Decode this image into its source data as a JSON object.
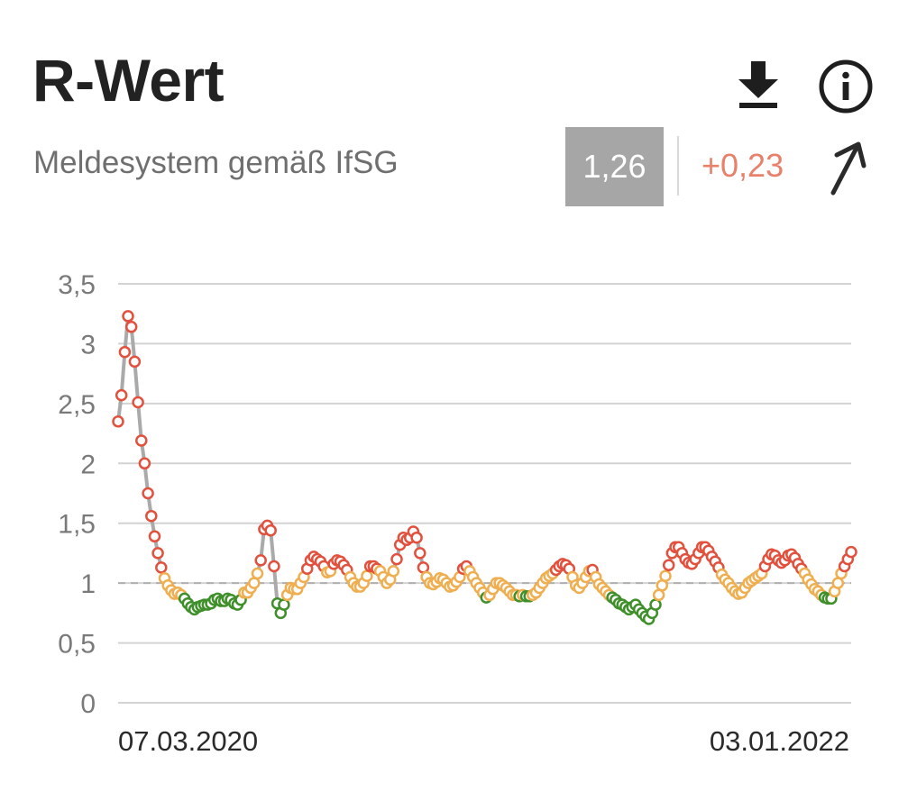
{
  "header": {
    "title": "R-Wert",
    "subtitle": "Meldesystem gemäß IfSG",
    "current_value": "1,26",
    "delta": "+0,23",
    "delta_color": "#e8806a",
    "badge_color": "#a6a6a6",
    "icons": [
      "download-icon",
      "info-icon",
      "trend-up-icon"
    ]
  },
  "chart_data": {
    "type": "line",
    "title": "",
    "xlabel": "",
    "ylabel": "",
    "x_start": "07.03.2020",
    "x_end": "03.01.2022",
    "x_tick_labels": [
      "07.03.2020",
      "03.01.2022"
    ],
    "ylim": [
      0,
      3.5
    ],
    "y_ticks": [
      0,
      0.5,
      1,
      1.5,
      2,
      2.5,
      3,
      3.5
    ],
    "y_tick_labels": [
      "0",
      "0,5",
      "1",
      "1,5",
      "2",
      "2,5",
      "3",
      "3,5"
    ],
    "reference_line": 1,
    "grid": true,
    "line_color": "#aaaaaa",
    "marker_colors": {
      "below": "#3f8f2a",
      "near": "#efae4f",
      "above": "#e2513d"
    },
    "thresholds": {
      "below": 0.9,
      "above": 1.1
    },
    "series": [
      {
        "values": [
          2.35,
          2.57,
          2.93,
          3.23,
          3.14,
          2.85,
          2.51,
          2.19,
          2.0,
          1.75,
          1.56,
          1.39,
          1.25,
          1.13,
          1.04,
          0.98,
          0.94,
          0.91,
          0.92,
          0.9,
          0.87,
          0.83,
          0.8,
          0.78,
          0.8,
          0.81,
          0.82,
          0.82,
          0.83,
          0.86,
          0.87,
          0.85,
          0.85,
          0.87,
          0.86,
          0.83,
          0.82,
          0.86,
          0.92,
          0.92,
          0.96,
          1.0,
          1.08,
          1.19,
          1.45,
          1.48,
          1.44,
          1.14,
          0.83,
          0.75,
          0.82,
          0.9,
          0.96,
          0.95,
          0.95,
          1.0,
          1.05,
          1.12,
          1.19,
          1.22,
          1.2,
          1.18,
          1.14,
          1.09,
          1.1,
          1.16,
          1.19,
          1.18,
          1.15,
          1.11,
          1.05,
          1.0,
          0.97,
          0.97,
          1.0,
          1.06,
          1.14,
          1.14,
          1.12,
          1.1,
          1.05,
          1.0,
          1.03,
          1.1,
          1.2,
          1.32,
          1.38,
          1.36,
          1.38,
          1.43,
          1.38,
          1.25,
          1.13,
          1.05,
          1.0,
          0.99,
          1.01,
          1.04,
          1.03,
          1.0,
          0.97,
          0.98,
          1.01,
          1.05,
          1.12,
          1.14,
          1.1,
          1.05,
          1.0,
          0.96,
          0.92,
          0.88,
          0.9,
          0.95,
          1.0,
          1.0,
          0.98,
          0.96,
          0.93,
          0.9,
          0.9,
          0.89,
          0.9,
          0.89,
          0.89,
          0.9,
          0.92,
          0.96,
          1.0,
          1.04,
          1.06,
          1.08,
          1.11,
          1.14,
          1.16,
          1.15,
          1.12,
          1.05,
          0.98,
          0.96,
          1.0,
          1.05,
          1.1,
          1.11,
          1.05,
          0.99,
          0.96,
          0.93,
          0.9,
          0.88,
          0.86,
          0.83,
          0.82,
          0.8,
          0.78,
          0.8,
          0.82,
          0.78,
          0.75,
          0.72,
          0.7,
          0.75,
          0.82,
          0.9,
          0.98,
          1.06,
          1.15,
          1.25,
          1.3,
          1.3,
          1.25,
          1.2,
          1.17,
          1.16,
          1.2,
          1.25,
          1.3,
          1.3,
          1.27,
          1.22,
          1.18,
          1.13,
          1.07,
          1.03,
          1.0,
          0.96,
          0.93,
          0.91,
          0.92,
          0.96,
          1.0,
          1.02,
          1.04,
          1.06,
          1.08,
          1.14,
          1.2,
          1.24,
          1.23,
          1.19,
          1.17,
          1.19,
          1.23,
          1.24,
          1.21,
          1.16,
          1.12,
          1.08,
          1.03,
          0.99,
          0.95,
          0.93,
          0.9,
          0.88,
          0.87,
          0.87,
          0.93,
          1.0,
          1.08,
          1.14,
          1.2,
          1.26
        ]
      }
    ]
  }
}
